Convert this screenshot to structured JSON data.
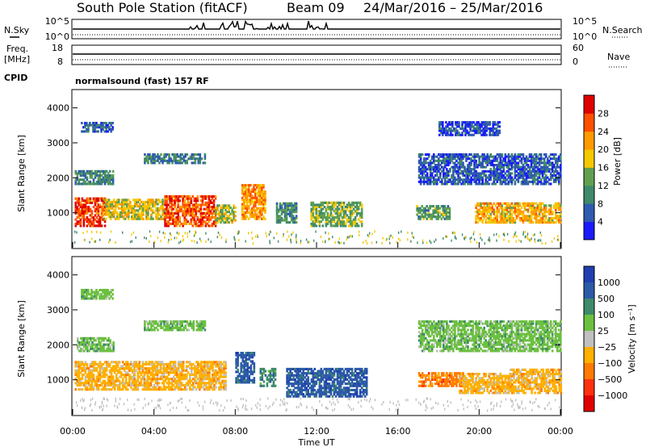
{
  "header": {
    "title": "South Pole Station (fitACF)",
    "beam": "Beam 09",
    "date_range": "24/Mar/2016 – 25/Mar/2016"
  },
  "strips": {
    "nsky_label": "N.Sky",
    "nsearch_label": "N.Search",
    "nsky_ticks": [
      "10^5",
      "10^0"
    ],
    "freq_label_1": "Freq.",
    "freq_label_2": "[MHz]",
    "freq_ticks": [
      "18",
      "8"
    ],
    "nave_label": "Nave",
    "nave_ticks": [
      "60",
      "0"
    ],
    "cpid_label": "CPID",
    "cpid_text": "normalsound (fast) 157 RF"
  },
  "colors": {
    "power": [
      "#1a1aff",
      "#2f5ab0",
      "#3f8a6a",
      "#60a050",
      "#f5c800",
      "#ff9a00",
      "#ff5000",
      "#e00000"
    ],
    "velocity": [
      "#1f3fb0",
      "#2c5aa8",
      "#3e8a6a",
      "#6cc040",
      "#c0c0c0",
      "#ffb000",
      "#ff7a00",
      "#ff3010",
      "#e00000"
    ]
  },
  "chart_data": [
    {
      "type": "heatmap",
      "title": "South Pole Station (fitACF)   Beam 09  24/Mar/2016 – 25/Mar/2016",
      "xlabel": "Time UT",
      "ylabel": "Slant Range [km]",
      "xlim": [
        "00:00",
        "24:00"
      ],
      "ylim": [
        0,
        4500
      ],
      "x_ticks": [
        "00:00",
        "04:00",
        "08:00",
        "12:00",
        "16:00",
        "20:00",
        "00:00"
      ],
      "y_ticks": [
        1000,
        2000,
        3000,
        4000
      ],
      "colorbar": {
        "label": "Power [dB]",
        "range": [
          0,
          32
        ],
        "ticks": [
          4,
          8,
          12,
          16,
          20,
          24,
          28
        ]
      },
      "regions": [
        {
          "t": [
            0.1,
            1.6
          ],
          "r": [
            600,
            1400
          ],
          "level": 27
        },
        {
          "t": [
            1.5,
            4.5
          ],
          "r": [
            800,
            1400
          ],
          "level": 18
        },
        {
          "t": [
            4.5,
            7.0
          ],
          "r": [
            600,
            1500
          ],
          "level": 26
        },
        {
          "t": [
            7.0,
            8.0
          ],
          "r": [
            700,
            1200
          ],
          "level": 16
        },
        {
          "t": [
            8.3,
            9.5
          ],
          "r": [
            800,
            1800
          ],
          "level": 22
        },
        {
          "t": [
            10.0,
            11.0
          ],
          "r": [
            700,
            1300
          ],
          "level": 10
        },
        {
          "t": [
            11.7,
            14.2
          ],
          "r": [
            600,
            1300
          ],
          "level": 14
        },
        {
          "t": [
            16.9,
            18.5
          ],
          "r": [
            800,
            1200
          ],
          "level": 12
        },
        {
          "t": [
            19.8,
            24.0
          ],
          "r": [
            700,
            1300
          ],
          "level": 20
        },
        {
          "t": [
            0.1,
            2.0
          ],
          "r": [
            1800,
            2200
          ],
          "level": 10
        },
        {
          "t": [
            3.5,
            6.5
          ],
          "r": [
            2400,
            2700
          ],
          "level": 9
        },
        {
          "t": [
            0.4,
            2.0
          ],
          "r": [
            3300,
            3600
          ],
          "level": 6
        },
        {
          "t": [
            17.0,
            24.0
          ],
          "r": [
            1800,
            2700
          ],
          "level": 6
        },
        {
          "t": [
            18.0,
            21.0
          ],
          "r": [
            3200,
            3600
          ],
          "level": 5
        }
      ]
    },
    {
      "type": "heatmap",
      "xlabel": "Time UT",
      "ylabel": "Slant Range [km]",
      "xlim": [
        "00:00",
        "24:00"
      ],
      "ylim": [
        0,
        4500
      ],
      "x_ticks": [
        "00:00",
        "04:00",
        "08:00",
        "12:00",
        "16:00",
        "20:00",
        "00:00"
      ],
      "y_ticks": [
        1000,
        2000,
        3000,
        4000
      ],
      "colorbar": {
        "label": "Velocity [m s⁻¹]",
        "ticks": [
          "1000",
          "500",
          "100",
          "25",
          "−25",
          "−100",
          "−500",
          "−1000"
        ]
      },
      "regions": [
        {
          "t": [
            0.1,
            3.0
          ],
          "r": [
            700,
            1500
          ],
          "level": "-100"
        },
        {
          "t": [
            3.0,
            7.5
          ],
          "r": [
            700,
            1500
          ],
          "level": "-100"
        },
        {
          "t": [
            8.0,
            8.9
          ],
          "r": [
            900,
            1800
          ],
          "level": "500"
        },
        {
          "t": [
            9.2,
            10.0
          ],
          "r": [
            800,
            1300
          ],
          "level": "100"
        },
        {
          "t": [
            10.5,
            14.5
          ],
          "r": [
            500,
            1300
          ],
          "level": "500"
        },
        {
          "t": [
            17.0,
            19.2
          ],
          "r": [
            800,
            1200
          ],
          "level": "-500"
        },
        {
          "t": [
            19.0,
            21.5
          ],
          "r": [
            600,
            1200
          ],
          "level": "-100"
        },
        {
          "t": [
            21.5,
            24.0
          ],
          "r": [
            600,
            1300
          ],
          "level": "-100"
        },
        {
          "t": [
            0.2,
            2.0
          ],
          "r": [
            1800,
            2200
          ],
          "level": "25"
        },
        {
          "t": [
            3.5,
            6.5
          ],
          "r": [
            2400,
            2700
          ],
          "level": "25"
        },
        {
          "t": [
            17.0,
            24.0
          ],
          "r": [
            1800,
            2700
          ],
          "level": "25"
        },
        {
          "t": [
            0.4,
            2.0
          ],
          "r": [
            3300,
            3600
          ],
          "level": "25"
        }
      ]
    }
  ]
}
